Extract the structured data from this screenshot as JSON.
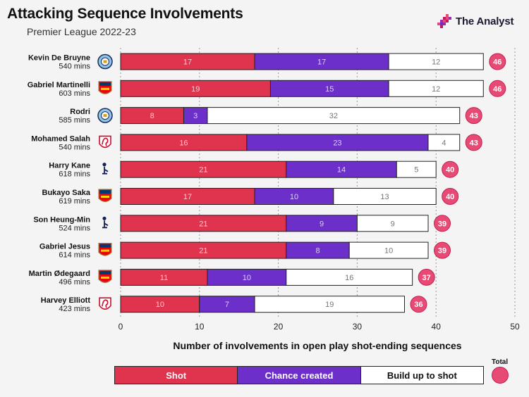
{
  "title": "Attacking Sequence Involvements",
  "subtitle": "Premier League 2022-23",
  "brand": {
    "name": "The Analyst"
  },
  "colors": {
    "shot": "#e0344e",
    "chance": "#6d2fc9",
    "buildup": "#ffffff",
    "total": "#e84a76"
  },
  "chart_data": {
    "type": "bar",
    "orientation": "horizontal",
    "stacked": true,
    "xlabel": "Number of involvements in open play shot-ending sequences",
    "xlim": [
      0,
      50
    ],
    "xticks": [
      0,
      10,
      20,
      30,
      40,
      50
    ],
    "grid": true,
    "legend_position": "bottom",
    "total_label": "Total",
    "categories": [
      {
        "player": "Kevin De Bruyne",
        "minutes": "540 mins",
        "club_icon": "man-city-badge-icon"
      },
      {
        "player": "Gabriel Martinelli",
        "minutes": "603 mins",
        "club_icon": "arsenal-badge-icon"
      },
      {
        "player": "Rodri",
        "minutes": "585 mins",
        "club_icon": "man-city-badge-icon"
      },
      {
        "player": "Mohamed Salah",
        "minutes": "540 mins",
        "club_icon": "liverpool-badge-icon"
      },
      {
        "player": "Harry Kane",
        "minutes": "618 mins",
        "club_icon": "tottenham-badge-icon"
      },
      {
        "player": "Bukayo Saka",
        "minutes": "619 mins",
        "club_icon": "arsenal-badge-icon"
      },
      {
        "player": "Son Heung-Min",
        "minutes": "524 mins",
        "club_icon": "tottenham-badge-icon"
      },
      {
        "player": "Gabriel Jesus",
        "minutes": "614 mins",
        "club_icon": "arsenal-badge-icon"
      },
      {
        "player": "Martin Ødegaard",
        "minutes": "496 mins",
        "club_icon": "arsenal-badge-icon"
      },
      {
        "player": "Harvey Elliott",
        "minutes": "423 mins",
        "club_icon": "liverpool-badge-icon"
      }
    ],
    "series": [
      {
        "name": "Shot",
        "values": [
          17,
          19,
          8,
          16,
          21,
          17,
          21,
          21,
          11,
          10
        ]
      },
      {
        "name": "Chance created",
        "values": [
          17,
          15,
          3,
          23,
          14,
          10,
          9,
          8,
          10,
          7
        ]
      },
      {
        "name": "Build up to shot",
        "values": [
          12,
          12,
          32,
          4,
          5,
          13,
          9,
          10,
          16,
          19
        ]
      }
    ],
    "totals": [
      46,
      46,
      43,
      43,
      40,
      40,
      39,
      39,
      37,
      36
    ]
  }
}
